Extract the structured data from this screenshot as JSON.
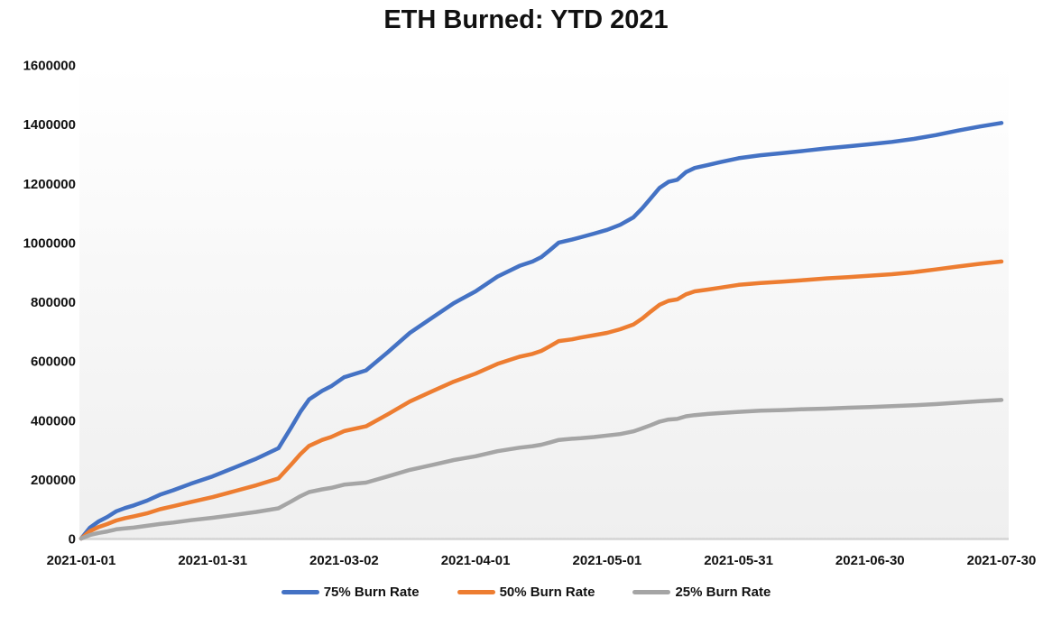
{
  "page": {
    "title": "ETH Burned: YTD 2021"
  },
  "chart_data": {
    "type": "line",
    "title": "ETH Burned: YTD 2021",
    "xlabel": "",
    "ylabel": "",
    "grid": false,
    "legend_position": "bottom",
    "ylim": [
      0,
      1600000
    ],
    "y_ticks": [
      0,
      200000,
      400000,
      600000,
      800000,
      1000000,
      1200000,
      1400000,
      1600000
    ],
    "x_ticks": [
      {
        "label": "2021-01-01",
        "day": 0
      },
      {
        "label": "2021-01-31",
        "day": 30
      },
      {
        "label": "2021-03-02",
        "day": 60
      },
      {
        "label": "2021-04-01",
        "day": 90
      },
      {
        "label": "2021-05-01",
        "day": 120
      },
      {
        "label": "2021-05-31",
        "day": 150
      },
      {
        "label": "2021-06-30",
        "day": 180
      },
      {
        "label": "2021-07-30",
        "day": 210
      }
    ],
    "x_days": [
      0,
      2,
      4,
      6,
      8,
      10,
      12,
      15,
      18,
      21,
      25,
      30,
      35,
      40,
      45,
      48,
      50,
      52,
      55,
      57,
      60,
      65,
      70,
      75,
      80,
      85,
      90,
      95,
      100,
      103,
      105,
      107,
      109,
      112,
      114,
      117,
      120,
      123,
      126,
      128,
      130,
      132,
      134,
      136,
      138,
      140,
      143,
      146,
      150,
      155,
      160,
      165,
      170,
      175,
      180,
      185,
      190,
      195,
      200,
      205,
      210
    ],
    "series": [
      {
        "id": "75",
        "name": "75% Burn Rate",
        "color": "#4472C4",
        "values": [
          0,
          37000,
          58000,
          73000,
          92000,
          103000,
          112000,
          128000,
          148000,
          163000,
          185000,
          210000,
          240000,
          270000,
          305000,
          377000,
          428000,
          470000,
          499000,
          514000,
          545000,
          568000,
          630000,
          695000,
          745000,
          795000,
          835000,
          885000,
          921000,
          936000,
          951000,
          975000,
          1000000,
          1010000,
          1018000,
          1030000,
          1043000,
          1060000,
          1085000,
          1115000,
          1150000,
          1185000,
          1205000,
          1212000,
          1238000,
          1252000,
          1262000,
          1272000,
          1285000,
          1295000,
          1302000,
          1310000,
          1318000,
          1325000,
          1332000,
          1340000,
          1350000,
          1363000,
          1378000,
          1392000,
          1404000
        ]
      },
      {
        "id": "50",
        "name": "50% Burn Rate",
        "color": "#ED7D31",
        "values": [
          0,
          25000,
          39000,
          49000,
          61000,
          69000,
          75000,
          85000,
          99000,
          109000,
          123000,
          140000,
          160000,
          180000,
          203000,
          251000,
          285000,
          313000,
          333000,
          343000,
          363000,
          379000,
          420000,
          463000,
          497000,
          530000,
          557000,
          590000,
          614000,
          624000,
          634000,
          650000,
          667000,
          673000,
          679000,
          687000,
          695000,
          707000,
          723000,
          743000,
          767000,
          790000,
          803000,
          808000,
          825000,
          835000,
          841000,
          848000,
          857000,
          863000,
          868000,
          873000,
          879000,
          883000,
          888000,
          893000,
          900000,
          909000,
          919000,
          928000,
          936000
        ]
      },
      {
        "id": "25",
        "name": "25% Burn Rate",
        "color": "#A5A5A5",
        "values": [
          0,
          12000,
          19000,
          24000,
          31000,
          34000,
          37000,
          43000,
          49000,
          54000,
          62000,
          70000,
          80000,
          90000,
          102000,
          126000,
          143000,
          157000,
          166000,
          171000,
          182000,
          189000,
          210000,
          232000,
          248000,
          265000,
          278000,
          295000,
          307000,
          312000,
          317000,
          325000,
          333000,
          337000,
          339000,
          343000,
          348000,
          353000,
          362000,
          372000,
          383000,
          395000,
          402000,
          404000,
          413000,
          417000,
          421000,
          424000,
          428000,
          432000,
          434000,
          437000,
          439000,
          442000,
          444000,
          447000,
          450000,
          454000,
          459000,
          464000,
          468000
        ]
      }
    ],
    "style": {
      "line_width": 4.5,
      "baseline_color": "#d4d4d4",
      "plot_bg_top": "#ffffff",
      "plot_bg_bottom": "#efefef"
    }
  }
}
